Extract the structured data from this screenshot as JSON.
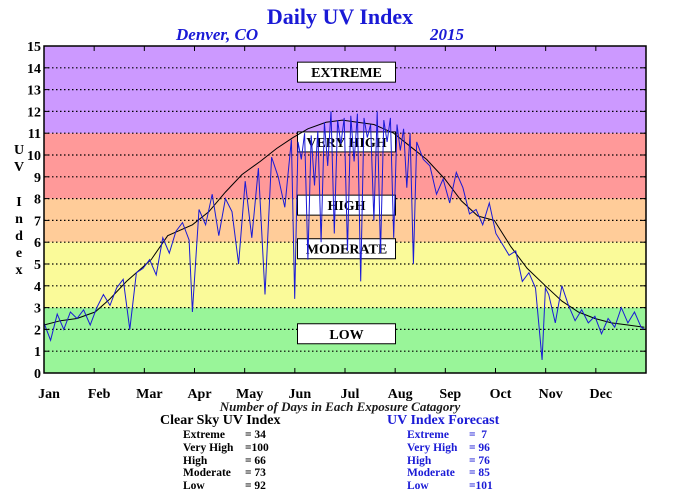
{
  "chart_data": {
    "type": "line",
    "title": "Daily UV Index",
    "subtitle_location": "Denver, CO",
    "subtitle_year": "2015",
    "ylabel": "UV Index",
    "xlabel": "Number of Days in Each Exposure Catagory",
    "ylim": [
      0,
      15
    ],
    "yticks": [
      "0",
      "1",
      "2",
      "3",
      "4",
      "5",
      "6",
      "7",
      "8",
      "9",
      "10",
      "11",
      "12",
      "13",
      "14",
      "15"
    ],
    "xlim": [
      0,
      365
    ],
    "xticks": [
      "Jan",
      "Feb",
      "Mar",
      "Apr",
      "May",
      "Jun",
      "Jul",
      "Aug",
      "Sep",
      "Oct",
      "Nov",
      "Dec"
    ],
    "grid": true,
    "zones": [
      {
        "label": "LOW",
        "from": 0,
        "to": 3,
        "color": "#99f599"
      },
      {
        "label": "MODERATE",
        "from": 3,
        "to": 6,
        "color": "#fafa99"
      },
      {
        "label": "HIGH",
        "from": 6,
        "to": 8,
        "color": "#ffcc99"
      },
      {
        "label": "VERY HIGH",
        "from": 8,
        "to": 11,
        "color": "#ff9999"
      },
      {
        "label": "EXTREME",
        "from": 11,
        "to": 15,
        "color": "#cc99ff"
      }
    ],
    "zone_label_positions": [
      {
        "label": "LOW",
        "y": 1.8
      },
      {
        "label": "MODERATE",
        "y": 5.7
      },
      {
        "label": "HIGH",
        "y": 7.7
      },
      {
        "label": "VERY HIGH",
        "y": 10.6
      },
      {
        "label": "EXTREME",
        "y": 13.8
      }
    ],
    "series": [
      {
        "name": "Clear Sky UV Index",
        "color": "#000000",
        "x": [
          0,
          10,
          20,
          31,
          40,
          50,
          59,
          65,
          75,
          90,
          100,
          110,
          120,
          131,
          141,
          151,
          160,
          171,
          181,
          190,
          200,
          212,
          222,
          232,
          243,
          253,
          263,
          273,
          283,
          293,
          304,
          314,
          324,
          334,
          344,
          354,
          364
        ],
        "values": [
          2.2,
          2.4,
          2.5,
          2.8,
          3.4,
          4.2,
          4.8,
          5.2,
          6.3,
          6.8,
          7.4,
          8.3,
          9.1,
          9.7,
          10.3,
          10.8,
          11.2,
          11.5,
          11.6,
          11.5,
          11.4,
          11.0,
          10.4,
          9.8,
          8.9,
          7.9,
          7.2,
          7.0,
          5.8,
          4.8,
          4.0,
          3.3,
          2.8,
          2.5,
          2.3,
          2.2,
          2.1
        ]
      },
      {
        "name": "UV Index Forecast",
        "color": "#1a1ad6",
        "x": [
          0,
          4,
          8,
          12,
          16,
          20,
          24,
          28,
          32,
          36,
          40,
          44,
          48,
          52,
          56,
          60,
          64,
          68,
          72,
          76,
          80,
          84,
          88,
          90,
          94,
          98,
          102,
          106,
          110,
          114,
          118,
          122,
          126,
          130,
          134,
          138,
          142,
          146,
          150,
          152,
          154,
          156,
          158,
          160,
          162,
          164,
          166,
          168,
          170,
          172,
          174,
          176,
          178,
          180,
          182,
          184,
          186,
          188,
          190,
          192,
          194,
          196,
          198,
          200,
          202,
          204,
          206,
          208,
          210,
          212,
          214,
          216,
          218,
          220,
          222,
          224,
          226,
          230,
          234,
          238,
          242,
          246,
          250,
          254,
          258,
          262,
          266,
          270,
          274,
          278,
          282,
          286,
          290,
          294,
          298,
          302,
          304,
          306,
          310,
          314,
          318,
          322,
          326,
          330,
          334,
          338,
          342,
          346,
          350,
          354,
          358,
          362,
          364
        ],
        "values": [
          2.3,
          1.5,
          2.7,
          2.0,
          2.8,
          2.5,
          2.9,
          2.2,
          3.0,
          3.6,
          3.1,
          3.9,
          4.3,
          2.0,
          4.6,
          4.8,
          5.2,
          4.5,
          6.2,
          5.5,
          6.5,
          6.9,
          6.1,
          2.8,
          7.5,
          6.8,
          8.2,
          6.3,
          8.0,
          7.4,
          5.0,
          8.8,
          6.2,
          9.4,
          3.6,
          9.9,
          9.0,
          7.6,
          10.7,
          3.4,
          10.6,
          9.8,
          11.0,
          5.2,
          10.9,
          8.6,
          11.1,
          6.0,
          11.5,
          9.5,
          12.0,
          6.4,
          11.6,
          10.5,
          11.7,
          5.6,
          11.8,
          9.7,
          11.9,
          4.2,
          11.7,
          10.8,
          11.4,
          7.0,
          12.0,
          5.5,
          11.6,
          10.6,
          11.7,
          6.2,
          11.4,
          10.2,
          11.2,
          8.5,
          11.0,
          5.0,
          10.6,
          9.8,
          9.5,
          8.2,
          8.9,
          7.8,
          9.2,
          8.5,
          7.3,
          7.5,
          6.8,
          7.8,
          6.4,
          5.9,
          5.4,
          5.6,
          4.2,
          4.6,
          3.9,
          0.6,
          3.9,
          3.6,
          2.3,
          4.0,
          3.1,
          2.4,
          2.9,
          2.3,
          2.6,
          1.8,
          2.5,
          2.1,
          3.0,
          2.3,
          2.8,
          2.1,
          2.0
        ]
      }
    ],
    "clear_sky_table": {
      "title": "Clear Sky UV Index",
      "rows": [
        {
          "name": "Extreme",
          "value": "= 34"
        },
        {
          "name": "Very High",
          "value": "=100"
        },
        {
          "name": "High",
          "value": "= 66"
        },
        {
          "name": "Moderate",
          "value": "= 73"
        },
        {
          "name": "Low",
          "value": "= 92"
        }
      ]
    },
    "forecast_table": {
      "title": "UV Index Forecast",
      "rows": [
        {
          "name": "Extreme",
          "value": "=  7"
        },
        {
          "name": "Very High",
          "value": "= 96"
        },
        {
          "name": "High",
          "value": "= 76"
        },
        {
          "name": "Moderate",
          "value": "= 85"
        },
        {
          "name": "Low",
          "value": "=101"
        }
      ]
    }
  }
}
